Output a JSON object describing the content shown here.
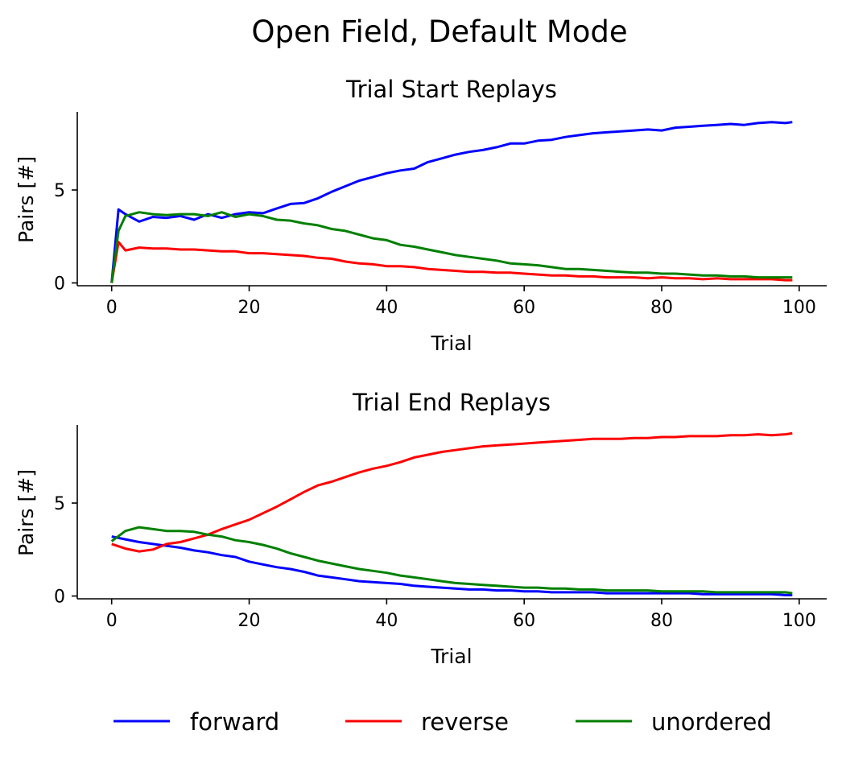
{
  "figure": {
    "title": "Open Field, Default Mode"
  },
  "chart_data": [
    {
      "type": "line",
      "title": "Trial Start Replays",
      "xlabel": "Trial",
      "ylabel": "Pairs [#]",
      "xlim": [
        -5,
        104
      ],
      "ylim": [
        -0.15,
        9.2
      ],
      "xticks": [
        0,
        20,
        40,
        60,
        80,
        100
      ],
      "yticks": [
        0,
        5
      ],
      "grid": false,
      "series": [
        {
          "name": "forward",
          "color": "#0000ff",
          "x": [
            0,
            1,
            2,
            4,
            6,
            8,
            10,
            12,
            14,
            16,
            18,
            20,
            22,
            24,
            26,
            28,
            30,
            32,
            34,
            36,
            38,
            40,
            42,
            44,
            46,
            48,
            50,
            52,
            54,
            56,
            58,
            60,
            62,
            64,
            66,
            68,
            70,
            72,
            74,
            76,
            78,
            80,
            82,
            84,
            86,
            88,
            90,
            92,
            94,
            96,
            98,
            99
          ],
          "values": [
            0,
            3.95,
            3.7,
            3.3,
            3.55,
            3.5,
            3.6,
            3.4,
            3.7,
            3.5,
            3.7,
            3.8,
            3.75,
            4.0,
            4.25,
            4.3,
            4.55,
            4.9,
            5.2,
            5.5,
            5.7,
            5.9,
            6.05,
            6.15,
            6.5,
            6.7,
            6.9,
            7.05,
            7.15,
            7.3,
            7.5,
            7.5,
            7.65,
            7.7,
            7.85,
            7.95,
            8.05,
            8.1,
            8.15,
            8.2,
            8.25,
            8.2,
            8.35,
            8.4,
            8.45,
            8.5,
            8.55,
            8.5,
            8.6,
            8.65,
            8.6,
            8.65
          ]
        },
        {
          "name": "reverse",
          "color": "#ff0000",
          "x": [
            0,
            1,
            2,
            4,
            6,
            8,
            10,
            12,
            14,
            16,
            18,
            20,
            22,
            24,
            26,
            28,
            30,
            32,
            34,
            36,
            38,
            40,
            42,
            44,
            46,
            48,
            50,
            52,
            54,
            56,
            58,
            60,
            62,
            64,
            66,
            68,
            70,
            72,
            74,
            76,
            78,
            80,
            82,
            84,
            86,
            88,
            90,
            92,
            94,
            96,
            98,
            99
          ],
          "values": [
            0,
            2.2,
            1.75,
            1.9,
            1.85,
            1.85,
            1.8,
            1.8,
            1.75,
            1.7,
            1.7,
            1.6,
            1.6,
            1.55,
            1.5,
            1.45,
            1.35,
            1.3,
            1.15,
            1.05,
            1.0,
            0.9,
            0.9,
            0.85,
            0.75,
            0.7,
            0.65,
            0.6,
            0.6,
            0.55,
            0.55,
            0.5,
            0.45,
            0.4,
            0.4,
            0.35,
            0.35,
            0.3,
            0.3,
            0.3,
            0.25,
            0.3,
            0.25,
            0.25,
            0.2,
            0.25,
            0.2,
            0.2,
            0.2,
            0.2,
            0.15,
            0.15
          ]
        },
        {
          "name": "unordered",
          "color": "#008000",
          "x": [
            0,
            1,
            2,
            4,
            6,
            8,
            10,
            12,
            14,
            16,
            18,
            20,
            22,
            24,
            26,
            28,
            30,
            32,
            34,
            36,
            38,
            40,
            42,
            44,
            46,
            48,
            50,
            52,
            54,
            56,
            58,
            60,
            62,
            64,
            66,
            68,
            70,
            72,
            74,
            76,
            78,
            80,
            82,
            84,
            86,
            88,
            90,
            92,
            94,
            96,
            98,
            99
          ],
          "values": [
            0,
            2.8,
            3.6,
            3.8,
            3.7,
            3.65,
            3.7,
            3.7,
            3.6,
            3.8,
            3.55,
            3.7,
            3.6,
            3.4,
            3.35,
            3.2,
            3.1,
            2.9,
            2.8,
            2.6,
            2.4,
            2.3,
            2.05,
            1.95,
            1.8,
            1.65,
            1.5,
            1.4,
            1.3,
            1.2,
            1.05,
            1.0,
            0.95,
            0.85,
            0.75,
            0.75,
            0.7,
            0.65,
            0.6,
            0.55,
            0.55,
            0.5,
            0.5,
            0.45,
            0.4,
            0.4,
            0.35,
            0.35,
            0.3,
            0.3,
            0.3,
            0.3
          ]
        }
      ]
    },
    {
      "type": "line",
      "title": "Trial End Replays",
      "xlabel": "Trial",
      "ylabel": "Pairs [#]",
      "xlim": [
        -5,
        104
      ],
      "ylim": [
        -0.15,
        9.2
      ],
      "xticks": [
        0,
        20,
        40,
        60,
        80,
        100
      ],
      "yticks": [
        0,
        5
      ],
      "grid": false,
      "series": [
        {
          "name": "forward",
          "color": "#0000ff",
          "x": [
            0,
            2,
            4,
            6,
            8,
            10,
            12,
            14,
            16,
            18,
            20,
            22,
            24,
            26,
            28,
            30,
            32,
            34,
            36,
            38,
            40,
            42,
            44,
            46,
            48,
            50,
            52,
            54,
            56,
            58,
            60,
            62,
            64,
            66,
            68,
            70,
            72,
            74,
            76,
            78,
            80,
            82,
            84,
            86,
            88,
            90,
            92,
            94,
            96,
            98,
            99
          ],
          "values": [
            3.2,
            3.05,
            2.9,
            2.8,
            2.7,
            2.6,
            2.45,
            2.35,
            2.2,
            2.1,
            1.85,
            1.7,
            1.55,
            1.45,
            1.3,
            1.1,
            1.0,
            0.9,
            0.8,
            0.75,
            0.7,
            0.65,
            0.55,
            0.5,
            0.45,
            0.4,
            0.35,
            0.35,
            0.3,
            0.3,
            0.25,
            0.25,
            0.2,
            0.2,
            0.2,
            0.2,
            0.15,
            0.15,
            0.15,
            0.15,
            0.15,
            0.15,
            0.15,
            0.1,
            0.1,
            0.1,
            0.1,
            0.1,
            0.1,
            0.05,
            0.05
          ]
        },
        {
          "name": "reverse",
          "color": "#ff0000",
          "x": [
            0,
            2,
            4,
            6,
            8,
            10,
            12,
            14,
            16,
            18,
            20,
            22,
            24,
            26,
            28,
            30,
            32,
            34,
            36,
            38,
            40,
            42,
            44,
            46,
            48,
            50,
            52,
            54,
            56,
            58,
            60,
            62,
            64,
            66,
            68,
            70,
            72,
            74,
            76,
            78,
            80,
            82,
            84,
            86,
            88,
            90,
            92,
            94,
            96,
            98,
            99
          ],
          "values": [
            2.8,
            2.55,
            2.4,
            2.5,
            2.8,
            2.9,
            3.1,
            3.3,
            3.6,
            3.85,
            4.1,
            4.45,
            4.8,
            5.2,
            5.6,
            5.95,
            6.15,
            6.4,
            6.65,
            6.85,
            7.0,
            7.2,
            7.45,
            7.6,
            7.75,
            7.85,
            7.95,
            8.05,
            8.1,
            8.15,
            8.2,
            8.25,
            8.3,
            8.35,
            8.4,
            8.45,
            8.45,
            8.45,
            8.5,
            8.5,
            8.55,
            8.55,
            8.6,
            8.6,
            8.6,
            8.65,
            8.65,
            8.7,
            8.65,
            8.7,
            8.75
          ]
        },
        {
          "name": "unordered",
          "color": "#008000",
          "x": [
            0,
            2,
            4,
            6,
            8,
            10,
            12,
            14,
            16,
            18,
            20,
            22,
            24,
            26,
            28,
            30,
            32,
            34,
            36,
            38,
            40,
            42,
            44,
            46,
            48,
            50,
            52,
            54,
            56,
            58,
            60,
            62,
            64,
            66,
            68,
            70,
            72,
            74,
            76,
            78,
            80,
            82,
            84,
            86,
            88,
            90,
            92,
            94,
            96,
            98,
            99
          ],
          "values": [
            2.95,
            3.5,
            3.7,
            3.6,
            3.5,
            3.5,
            3.45,
            3.3,
            3.2,
            3.0,
            2.9,
            2.75,
            2.55,
            2.3,
            2.1,
            1.9,
            1.75,
            1.6,
            1.45,
            1.35,
            1.25,
            1.1,
            1.0,
            0.9,
            0.8,
            0.7,
            0.65,
            0.6,
            0.55,
            0.5,
            0.45,
            0.45,
            0.4,
            0.4,
            0.35,
            0.35,
            0.3,
            0.3,
            0.3,
            0.3,
            0.25,
            0.25,
            0.25,
            0.25,
            0.2,
            0.2,
            0.2,
            0.2,
            0.2,
            0.2,
            0.15
          ]
        }
      ]
    }
  ],
  "legend": {
    "placement": "bottom",
    "entries": [
      {
        "label": "forward",
        "color": "#0000ff"
      },
      {
        "label": "reverse",
        "color": "#ff0000"
      },
      {
        "label": "unordered",
        "color": "#008000"
      }
    ]
  }
}
